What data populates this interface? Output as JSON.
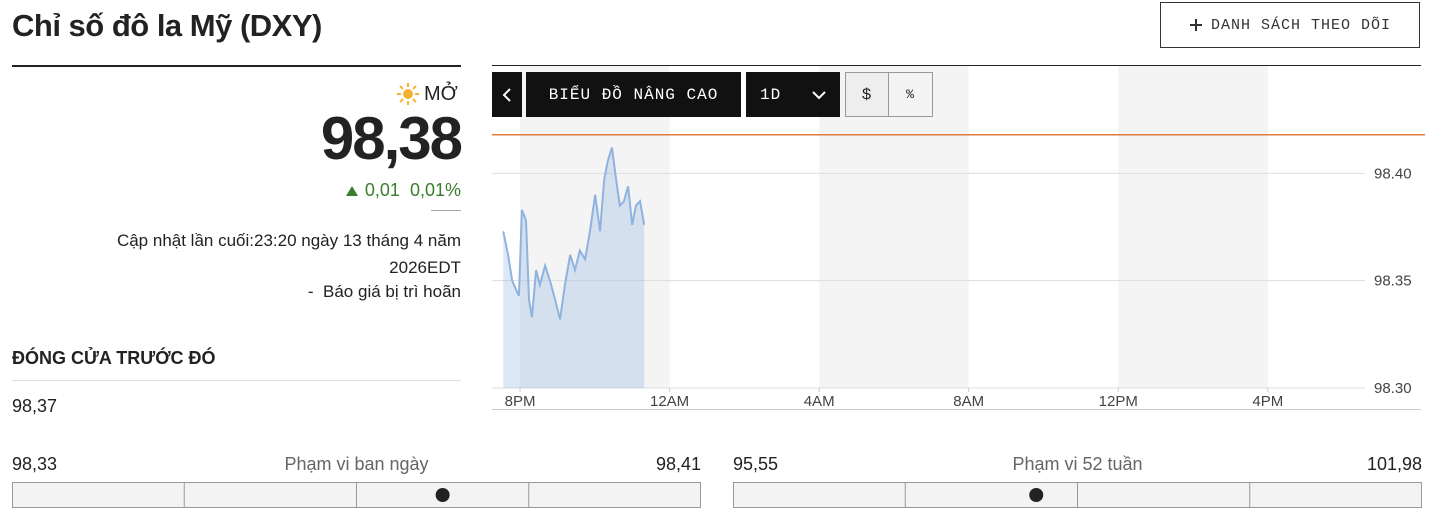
{
  "header": {
    "title": "Chỉ số đô la Mỹ (DXY)",
    "watchlist_button": "DANH SÁCH THEO DÕI"
  },
  "quote": {
    "status": "MỞ",
    "price": {
      "value": 98.38,
      "label": "98,38"
    },
    "change": "0,01",
    "change_percent": "0,01%",
    "updated": "Cập nhật lần cuối:23:20 ngày 13 tháng 4 năm 2026EDT",
    "delayed": "-  Báo giá bị trì hoãn"
  },
  "previous_close": {
    "label": "ĐÓNG CỬA TRƯỚC ĐÓ",
    "value": "98,37"
  },
  "ranges": [
    {
      "label": "Phạm vi ban ngày",
      "low": {
        "value": 98.33,
        "label": "98,33"
      },
      "high": {
        "value": 98.41,
        "label": "98,41"
      }
    },
    {
      "label": "Phạm vi 52 tuần",
      "low": {
        "value": 95.55,
        "label": "95,55"
      },
      "high": {
        "value": 101.98,
        "label": "101,98"
      }
    }
  ],
  "toolbar": {
    "advanced": "BIỂU ĐỒ NÂNG CAO",
    "interval": "1D",
    "dollar": "$",
    "percent": "%"
  },
  "chart_data": {
    "type": "line",
    "x": [
      19.55,
      19.68,
      19.79,
      19.89,
      19.97,
      20.05,
      20.16,
      20.24,
      20.32,
      20.43,
      20.53,
      20.67,
      20.8,
      20.94,
      21.07,
      21.2,
      21.34,
      21.47,
      21.6,
      21.74,
      21.87,
      22.01,
      22.14,
      22.25,
      22.35,
      22.46,
      22.57,
      22.67,
      22.78,
      22.89,
      23.0,
      23.1,
      23.21,
      23.32
    ],
    "series": [
      {
        "color": "#8fb3e0",
        "values": [
          98.373,
          98.362,
          98.35,
          98.346,
          98.343,
          98.383,
          98.378,
          98.341,
          98.333,
          98.355,
          98.348,
          98.357,
          98.35,
          98.341,
          98.332,
          98.348,
          98.362,
          98.355,
          98.364,
          98.36,
          98.373,
          98.39,
          98.373,
          98.397,
          98.406,
          98.412,
          98.397,
          98.385,
          98.387,
          98.394,
          98.376,
          98.385,
          98.387,
          98.376
        ]
      }
    ],
    "reference_line": {
      "value": 98.418,
      "color": "#e07b39"
    },
    "xlim": [
      19.25,
      42.6
    ],
    "xticks": [
      {
        "value": 20,
        "label": "8PM"
      },
      {
        "value": 24,
        "label": "12AM"
      },
      {
        "value": 28,
        "label": "4AM"
      },
      {
        "value": 32,
        "label": "8AM"
      },
      {
        "value": 36,
        "label": "12PM"
      },
      {
        "value": 40,
        "label": "4PM"
      }
    ],
    "ylim": [
      98.3,
      98.45
    ],
    "yticks": [
      {
        "value": 98.3,
        "label": "98.30"
      },
      98.35,
      {
        "value": 98.4,
        "label": "98.40"
      }
    ],
    "grid": true
  }
}
